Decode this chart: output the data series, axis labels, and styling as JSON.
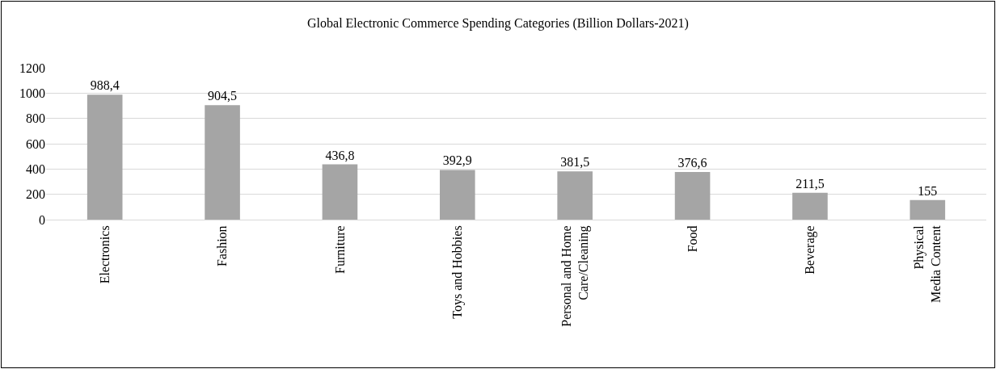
{
  "chart_data": {
    "type": "bar",
    "title": "Global Electronic Commerce Spending Categories (Billion Dollars-2021)",
    "categories": [
      "Electronics",
      "Fashion",
      "Furniture",
      "Toys and Hobbies",
      "Personal and Home Care/Cleaning",
      "Food",
      "Beverage",
      "Physical Media Content"
    ],
    "values": [
      988.4,
      904.5,
      436.8,
      392.9,
      381.5,
      376.6,
      211.5,
      155
    ],
    "value_labels": [
      "988,4",
      "904,5",
      "436,8",
      "392,9",
      "381,5",
      "376,6",
      "211,5",
      "155"
    ],
    "color": "#a5a5a5",
    "ylim": [
      0,
      1200
    ],
    "yticks": [
      0,
      200,
      400,
      600,
      800,
      1000,
      1200
    ],
    "grid": "y",
    "legend": false
  }
}
